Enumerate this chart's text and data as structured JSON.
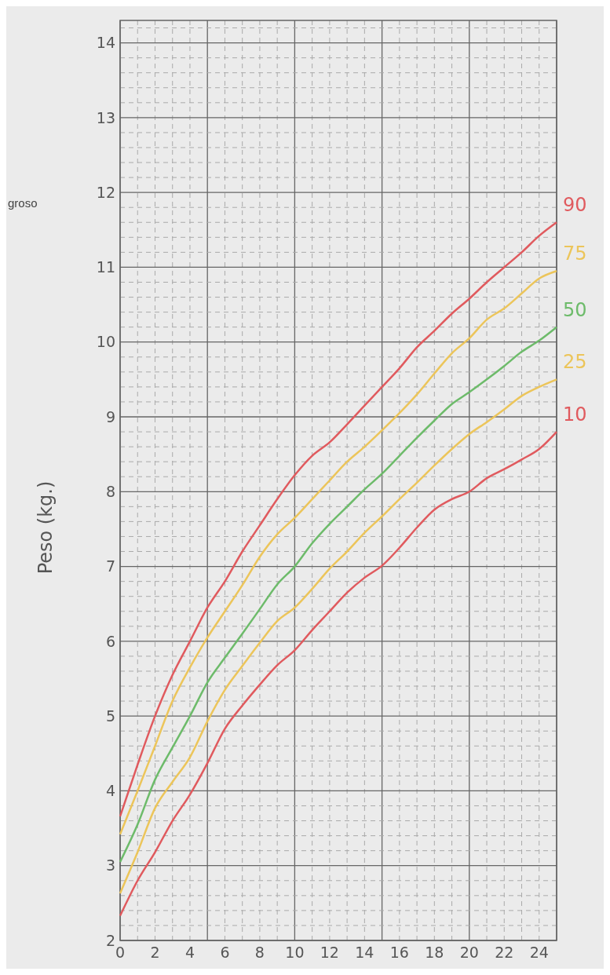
{
  "chart_data": {
    "type": "line",
    "ylabel": "Peso (kg.)",
    "annotations": [
      "groso"
    ],
    "x": [
      0,
      1,
      2,
      3,
      4,
      5,
      6,
      7,
      8,
      9,
      10,
      11,
      12,
      13,
      14,
      15,
      16,
      17,
      18,
      19,
      20,
      21,
      22,
      23,
      24,
      25
    ],
    "xlim": [
      0,
      25
    ],
    "xticks": [
      0,
      2,
      4,
      6,
      8,
      10,
      12,
      14,
      16,
      18,
      20,
      22,
      24
    ],
    "ylim": [
      2,
      14.3
    ],
    "yticks": [
      2,
      3,
      4,
      5,
      6,
      7,
      8,
      9,
      10,
      11,
      12,
      13,
      14
    ],
    "grid": true,
    "line_style": "solid",
    "marker": "none",
    "series": [
      {
        "name": "90",
        "color": "#e05a5e",
        "values": [
          3.66,
          4.35,
          5.0,
          5.55,
          6.0,
          6.45,
          6.8,
          7.2,
          7.55,
          7.9,
          8.22,
          8.48,
          8.66,
          8.9,
          9.15,
          9.4,
          9.65,
          9.93,
          10.15,
          10.38,
          10.58,
          10.8,
          11.0,
          11.2,
          11.42,
          11.6
        ]
      },
      {
        "name": "75",
        "color": "#ecc55a",
        "values": [
          3.42,
          4.0,
          4.6,
          5.2,
          5.65,
          6.05,
          6.4,
          6.75,
          7.13,
          7.43,
          7.65,
          7.9,
          8.15,
          8.4,
          8.6,
          8.82,
          9.05,
          9.3,
          9.58,
          9.85,
          10.05,
          10.3,
          10.45,
          10.65,
          10.85,
          10.95
        ]
      },
      {
        "name": "50",
        "color": "#6dbb6a",
        "values": [
          3.05,
          3.55,
          4.15,
          4.58,
          5.0,
          5.45,
          5.78,
          6.1,
          6.43,
          6.76,
          7.0,
          7.31,
          7.57,
          7.8,
          8.03,
          8.24,
          8.48,
          8.72,
          8.95,
          9.17,
          9.33,
          9.5,
          9.68,
          9.87,
          10.02,
          10.2
        ]
      },
      {
        "name": "25",
        "color": "#ecc55a",
        "values": [
          2.63,
          3.18,
          3.77,
          4.12,
          4.45,
          4.93,
          5.35,
          5.67,
          5.98,
          6.27,
          6.45,
          6.7,
          6.97,
          7.2,
          7.45,
          7.67,
          7.9,
          8.12,
          8.35,
          8.57,
          8.77,
          8.93,
          9.1,
          9.28,
          9.4,
          9.5
        ]
      },
      {
        "name": "10",
        "color": "#e05a5e",
        "values": [
          2.33,
          2.8,
          3.18,
          3.6,
          3.95,
          4.37,
          4.83,
          5.14,
          5.42,
          5.68,
          5.88,
          6.15,
          6.4,
          6.65,
          6.85,
          7.01,
          7.25,
          7.52,
          7.76,
          7.9,
          8.0,
          8.18,
          8.3,
          8.43,
          8.57,
          8.8
        ]
      }
    ]
  }
}
